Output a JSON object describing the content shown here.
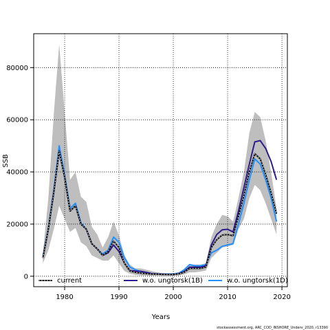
{
  "chart_data": {
    "type": "line",
    "xlabel": "Years",
    "ylabel": "SSB",
    "xlim": [
      1974.3,
      2021
    ],
    "ylim": [
      -4000,
      93000
    ],
    "x_ticks": [
      1980,
      1990,
      2000,
      2010,
      2020
    ],
    "y_ticks": [
      0,
      20000,
      40000,
      60000,
      80000
    ],
    "grid": "dotted, at ticks",
    "legend_position": "bottom",
    "confidence_band": {
      "color": "#bebebe",
      "years": [
        1976,
        1977,
        1978,
        1979,
        1980,
        1981,
        1982,
        1983,
        1984,
        1985,
        1986,
        1987,
        1988,
        1989,
        1990,
        1991,
        1992,
        1993,
        1994,
        1995,
        1996,
        1997,
        1998,
        1999,
        2000,
        2001,
        2002,
        2003,
        2004,
        2005,
        2006,
        2007,
        2008,
        2009,
        2010,
        2011,
        2012,
        2013,
        2014,
        2015,
        2016,
        2017,
        2018,
        2019
      ],
      "upper": [
        9000,
        30000,
        62000,
        89000,
        63000,
        37000,
        40000,
        30500,
        28500,
        19000,
        16000,
        11000,
        15000,
        21000,
        15500,
        8000,
        4500,
        3000,
        3000,
        2500,
        2000,
        1500,
        1200,
        1200,
        1200,
        1500,
        2500,
        4500,
        4500,
        4500,
        5000,
        15000,
        20000,
        23500,
        23000,
        21000,
        30000,
        40000,
        55000,
        63000,
        61000,
        52000,
        40000,
        26000
      ],
      "lower": [
        5000,
        10000,
        18000,
        27000,
        22000,
        17000,
        18500,
        13000,
        11500,
        8000,
        7000,
        6000,
        6000,
        8000,
        5000,
        2000,
        1000,
        500,
        300,
        200,
        200,
        200,
        200,
        200,
        200,
        300,
        700,
        1500,
        1500,
        1800,
        2200,
        7000,
        9000,
        11000,
        11500,
        12000,
        18000,
        22000,
        30000,
        35000,
        33000,
        28000,
        22000,
        16000
      ]
    },
    "series": [
      {
        "name": "current",
        "color": "#000000",
        "style": "solid-with-dash-overlay",
        "x": [
          1976,
          1977,
          1978,
          1979,
          1980,
          1981,
          1982,
          1983,
          1984,
          1985,
          1986,
          1987,
          1988,
          1989,
          1990,
          1991,
          1992,
          1993,
          1994,
          1995,
          1996,
          1997,
          1998,
          1999,
          2000,
          2001,
          2002,
          2003,
          2004,
          2005,
          2006,
          2007,
          2008,
          2009,
          2010,
          2011,
          2012,
          2013,
          2014,
          2015,
          2016,
          2017,
          2018,
          2019
        ],
        "y": [
          7000,
          18000,
          32000,
          48000,
          38000,
          25000,
          27000,
          20000,
          18000,
          12500,
          10500,
          8000,
          9500,
          13500,
          11000,
          5000,
          2000,
          1500,
          1200,
          1000,
          800,
          800,
          700,
          700,
          700,
          900,
          1500,
          3000,
          3000,
          3000,
          3500,
          11000,
          14000,
          15800,
          16000,
          15500,
          23000,
          31000,
          40000,
          47000,
          45000,
          39000,
          32000,
          24000
        ]
      },
      {
        "name": "w.o. ungtorsk(1B)",
        "color": "#2e1a8c",
        "style": "solid",
        "x": [
          1976,
          1977,
          1978,
          1979,
          1980,
          1981,
          1982,
          1983,
          1984,
          1985,
          1986,
          1987,
          1988,
          1989,
          1990,
          1991,
          1992,
          1993,
          1994,
          1995,
          1996,
          1997,
          1998,
          1999,
          2000,
          2001,
          2002,
          2003,
          2004,
          2005,
          2006,
          2007,
          2008,
          2009,
          2010,
          2011,
          2012,
          2013,
          2014,
          2015,
          2016,
          2017,
          2018,
          2019
        ],
        "y": [
          7000,
          18000,
          32000,
          48000,
          38000,
          25000,
          27000,
          20000,
          18000,
          12500,
          10500,
          8000,
          9000,
          12000,
          9500,
          5000,
          2200,
          2000,
          1900,
          1500,
          1000,
          900,
          800,
          700,
          700,
          1000,
          1800,
          3500,
          3500,
          3500,
          4000,
          12000,
          16000,
          17800,
          18000,
          17000,
          25000,
          34000,
          43000,
          51500,
          52000,
          49000,
          44000,
          37000
        ]
      },
      {
        "name": "w.o. ungtorsk(1D)",
        "color": "#1e90ff",
        "style": "solid",
        "x": [
          1976,
          1977,
          1978,
          1979,
          1980,
          1981,
          1982,
          1983,
          1984,
          1985,
          1986,
          1987,
          1988,
          1989,
          1990,
          1991,
          1992,
          1993,
          1994,
          1995,
          1996,
          1997,
          1998,
          1999,
          2000,
          2001,
          2002,
          2003,
          2004,
          2005,
          2006,
          2007,
          2008,
          2009,
          2010,
          2011,
          2012,
          2013,
          2014,
          2015,
          2016,
          2017,
          2018,
          2019
        ],
        "y": [
          7500,
          18500,
          33000,
          50000,
          39000,
          26000,
          28000,
          20500,
          18000,
          12500,
          10500,
          8500,
          10000,
          15000,
          13000,
          7000,
          3500,
          2500,
          1800,
          1500,
          1000,
          900,
          800,
          800,
          800,
          1200,
          2500,
          4500,
          4000,
          4000,
          4500,
          9000,
          10000,
          11500,
          12000,
          12500,
          20000,
          28000,
          37000,
          45000,
          43000,
          37000,
          30000,
          21000
        ]
      }
    ],
    "credit": "stockassessment.org,  ARC_COD_INSHORE_Underv_2020, r13390"
  }
}
